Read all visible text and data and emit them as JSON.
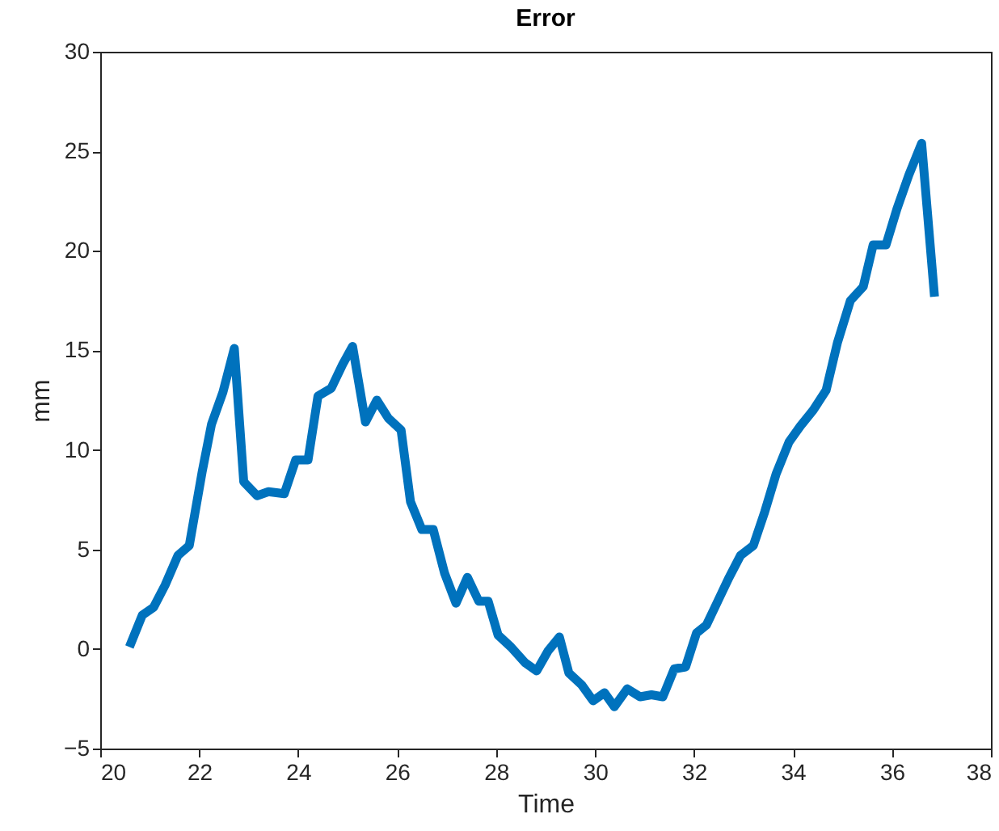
{
  "chart_data": {
    "type": "line",
    "title": "Error",
    "xlabel": "Time",
    "ylabel": "mm",
    "xlim": [
      20,
      38
    ],
    "xticks": [
      20,
      22,
      24,
      26,
      28,
      30,
      32,
      34,
      36,
      38
    ],
    "ylim": [
      -5,
      30
    ],
    "yticks": [
      -5,
      0,
      5,
      10,
      15,
      20,
      25,
      30
    ],
    "grid": false,
    "legend": false,
    "line_style": "solid",
    "marker": "none",
    "series": [
      {
        "color": "#0072bd",
        "x": [
          20.59,
          20.85,
          21.08,
          21.31,
          21.57,
          21.8,
          22.06,
          22.25,
          22.48,
          22.71,
          22.9,
          23.17,
          23.4,
          23.72,
          23.95,
          24.2,
          24.4,
          24.67,
          24.9,
          25.1,
          25.36,
          25.59,
          25.82,
          26.08,
          26.27,
          26.5,
          26.73,
          26.96,
          27.19,
          27.42,
          27.65,
          27.84,
          28.04,
          28.3,
          28.59,
          28.82,
          29.05,
          29.28,
          29.47,
          29.73,
          29.96,
          30.19,
          30.39,
          30.65,
          30.91,
          31.14,
          31.37,
          31.6,
          31.83,
          32.05,
          32.25,
          32.48,
          32.71,
          32.94,
          33.2,
          33.43,
          33.66,
          33.92,
          34.15,
          34.41,
          34.67,
          34.9,
          35.16,
          35.42,
          35.62,
          35.88,
          36.1,
          36.34,
          36.6,
          36.86
        ],
        "values": [
          0.1,
          1.7,
          2.1,
          3.2,
          4.7,
          5.2,
          8.9,
          11.3,
          12.9,
          15.1,
          8.4,
          7.7,
          7.9,
          7.8,
          9.5,
          9.5,
          12.7,
          13.1,
          14.3,
          15.2,
          11.4,
          12.5,
          11.6,
          11.0,
          7.4,
          6.0,
          6.0,
          3.8,
          2.3,
          3.6,
          2.4,
          2.4,
          0.7,
          0.1,
          -0.7,
          -1.1,
          -0.1,
          0.6,
          -1.2,
          -1.8,
          -2.6,
          -2.2,
          -2.9,
          -2.0,
          -2.4,
          -2.3,
          -2.4,
          -1.0,
          -0.9,
          0.8,
          1.2,
          2.4,
          3.6,
          4.7,
          5.2,
          6.9,
          8.8,
          10.4,
          11.2,
          12.0,
          13.0,
          15.4,
          17.5,
          18.2,
          20.3,
          20.3,
          22.1,
          23.8,
          25.4,
          17.7
        ]
      }
    ]
  }
}
